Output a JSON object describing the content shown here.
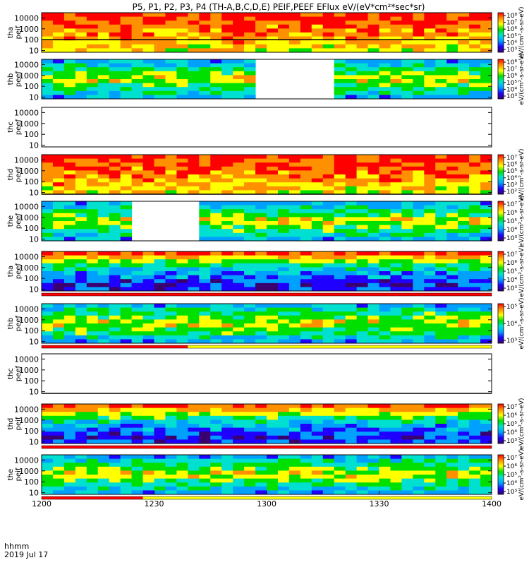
{
  "chart_data": {
    "type": "heatmap",
    "title": "P5, P1, P2, P3, P4 (TH-A,B,C,D,E) PEIF,PEEF EFlux eV/(eV*cm²*sec*sr)",
    "x_footer": {
      "line1": "hhmm",
      "line2": "2019 Jul 17"
    },
    "x_ticks": [
      "1200",
      "1230",
      "1300",
      "1330",
      "1400"
    ],
    "x_range_minutes": [
      0,
      120
    ],
    "y_scale": "log",
    "y_range": [
      7,
      30000
    ],
    "colorscale": [
      "#3a0070",
      "#1f00ff",
      "#00a0ff",
      "#00e0d0",
      "#00e000",
      "#ffff00",
      "#ff9000",
      "#ff0000"
    ],
    "panels": [
      {
        "label": [
          "tha",
          "peif"
        ],
        "y_ticks": [
          "10000",
          "1000",
          "100",
          "10"
        ],
        "cbar_ticks": [
          "10⁸",
          "10⁷",
          "10⁶",
          "10⁵",
          "10⁴",
          "10³"
        ],
        "cbar_label": "eV/(cm²-s-sr-eV)",
        "gaps": [],
        "band": null,
        "line_y": 100
      },
      {
        "label": [
          "thb",
          "peef"
        ],
        "y_ticks": [
          "10000",
          "1000",
          "100",
          "10"
        ],
        "cbar_ticks": [
          "10⁸",
          "10⁷",
          "10⁶",
          "10⁵",
          "10⁴",
          "10³"
        ],
        "cbar_label": "eV/(cm²-s-sr-eV)",
        "gaps": [
          [
            55,
            77
          ]
        ],
        "band": null,
        "line_y": null
      },
      {
        "label": [
          "thc",
          "peef"
        ],
        "y_ticks": [
          "10000",
          "1000",
          "100",
          "10"
        ],
        "cbar_ticks": [],
        "cbar_label": "",
        "gaps": [
          [
            0,
            120
          ]
        ],
        "band": null,
        "line_y": null
      },
      {
        "label": [
          "thd",
          "peef"
        ],
        "y_ticks": [
          "10000",
          "1000",
          "100",
          "10"
        ],
        "cbar_ticks": [
          "10⁷",
          "10⁶",
          "10⁵",
          "10⁴",
          "10³",
          "10²"
        ],
        "cbar_label": "eV/(cm²-s-sr-eV)",
        "gaps": [],
        "band": null,
        "line_y": 7
      },
      {
        "label": [
          "the",
          "peef"
        ],
        "y_ticks": [
          "10000",
          "1000",
          "100",
          "10"
        ],
        "cbar_ticks": [
          "10⁷",
          "10⁶",
          "10⁵",
          "10⁴",
          "10³"
        ],
        "cbar_label": "eV/(cm²-s-sr-eV)",
        "gaps": [
          [
            22,
            42
          ]
        ],
        "band": null,
        "line_y": null
      },
      {
        "label": [
          "tha",
          "peef"
        ],
        "y_ticks": [
          "10000",
          "1000",
          "100",
          "10"
        ],
        "cbar_ticks": [
          "10⁷",
          "10⁶",
          "10⁵",
          "10⁴",
          "10³"
        ],
        "cbar_label": "eV/(cm²-s-sr-eV)",
        "gaps": [],
        "band": {
          "red_end": 120,
          "yellow_end": 120
        },
        "line_y": null
      },
      {
        "label": [
          "thb",
          "peef"
        ],
        "y_ticks": [
          "10000",
          "1000",
          "100",
          "10"
        ],
        "cbar_ticks": [
          "10⁵",
          "10⁴",
          "10³"
        ],
        "cbar_label": "eV/(cm²-s-sr-eV)",
        "gaps": [],
        "band": {
          "red_end": 39,
          "yellow_end": 120
        },
        "line_y": null
      },
      {
        "label": [
          "thc",
          "peef"
        ],
        "y_ticks": [
          "10000",
          "1000",
          "100",
          "10"
        ],
        "cbar_ticks": [],
        "cbar_label": "",
        "gaps": [
          [
            0,
            120
          ]
        ],
        "band": null,
        "line_y": 7
      },
      {
        "label": [
          "thd",
          "peif"
        ],
        "y_ticks": [
          "10000",
          "1000",
          "100",
          "10"
        ],
        "cbar_ticks": [
          "10⁷",
          "10⁶",
          "10⁵",
          "10⁴",
          "10³"
        ],
        "cbar_label": "eV/(cm²-s-sr-eV)",
        "gaps": [],
        "band": {
          "red_end": 120,
          "yellow_end": 120
        },
        "line_y": null
      },
      {
        "label": [
          "the",
          "peif"
        ],
        "y_ticks": [
          "10000",
          "1000",
          "100",
          "10"
        ],
        "cbar_ticks": [
          "10⁷",
          "10⁶",
          "10⁵",
          "10⁴",
          "10³"
        ],
        "cbar_label": "eV/(cm²-s-sr-eV)",
        "gaps": [],
        "band": {
          "red_end": 27,
          "yellow_end": 120
        },
        "line_y": null
      }
    ]
  }
}
